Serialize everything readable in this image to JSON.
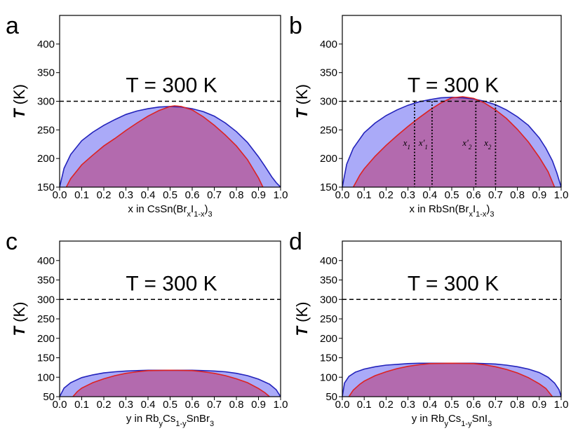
{
  "chart_data": [
    {
      "panel": "a",
      "type": "area",
      "xlim": [
        0.0,
        1.0
      ],
      "ylim": [
        150,
        450
      ],
      "xticks": [
        "0.0",
        "0.1",
        "0.2",
        "0.3",
        "0.4",
        "0.5",
        "0.6",
        "0.7",
        "0.8",
        "0.9",
        "1.0"
      ],
      "yticks": [
        "150",
        "200",
        "250",
        "300",
        "350",
        "400"
      ],
      "ylabel_italic": "T",
      "ylabel_unit": "(K)",
      "xlabel": "x in CsSn(Br<sub>x</sub>I<sub>1-x</sub>)<sub>3</sub>",
      "annotation": "T = 300 K",
      "reference_line": 300,
      "grid": false,
      "series": [
        {
          "role": "binodal",
          "color": "#2222bb",
          "fill": "#aaaaf8",
          "x": [
            0.0,
            0.02,
            0.05,
            0.1,
            0.15,
            0.2,
            0.25,
            0.3,
            0.35,
            0.4,
            0.45,
            0.5,
            0.55,
            0.6,
            0.65,
            0.7,
            0.75,
            0.8,
            0.85,
            0.9,
            0.93,
            0.96,
            0.98,
            1.0
          ],
          "y": [
            150,
            183,
            207,
            231,
            246,
            258,
            268,
            277,
            283,
            287,
            290,
            291,
            290,
            287,
            282,
            274,
            262,
            247,
            228,
            203,
            186,
            168,
            158,
            150
          ]
        },
        {
          "role": "spinodal",
          "color": "#dd2222",
          "fill": "#b36aae",
          "x": [
            0.03,
            0.05,
            0.1,
            0.15,
            0.2,
            0.25,
            0.3,
            0.35,
            0.4,
            0.45,
            0.5,
            0.52,
            0.55,
            0.6,
            0.65,
            0.7,
            0.75,
            0.8,
            0.85,
            0.9,
            0.92
          ],
          "y": [
            150,
            165,
            189,
            206,
            222,
            235,
            249,
            262,
            274,
            284,
            291,
            292,
            291,
            285,
            273,
            258,
            241,
            222,
            198,
            166,
            150
          ]
        }
      ]
    },
    {
      "panel": "b",
      "type": "area",
      "xlim": [
        0.0,
        1.0
      ],
      "ylim": [
        150,
        450
      ],
      "xticks": [
        "0.0",
        "0.1",
        "0.2",
        "0.3",
        "0.4",
        "0.5",
        "0.6",
        "0.7",
        "0.8",
        "0.9",
        "1.0"
      ],
      "yticks": [
        "150",
        "200",
        "250",
        "300",
        "350",
        "400"
      ],
      "ylabel_italic": "T",
      "ylabel_unit": "(K)",
      "xlabel": "x in RbSn(Br<sub>x</sub>I<sub>1-x</sub>)<sub>3</sub>",
      "annotation": "T = 300 K",
      "reference_line": 300,
      "grid": false,
      "vertical_markers": [
        {
          "x": 0.33,
          "label": "x<tspan baseline-shift='sub' font-size='9'>1</tspan>"
        },
        {
          "x": 0.41,
          "label": "x'<tspan baseline-shift='sub' font-size='9'>1</tspan>"
        },
        {
          "x": 0.61,
          "label": "x'<tspan baseline-shift='sub' font-size='9'>2</tspan>"
        },
        {
          "x": 0.7,
          "label": "x<tspan baseline-shift='sub' font-size='9'>2</tspan>"
        }
      ],
      "series": [
        {
          "role": "binodal",
          "color": "#2222bb",
          "fill": "#aaaaf8",
          "x": [
            0.0,
            0.02,
            0.05,
            0.1,
            0.15,
            0.2,
            0.25,
            0.3,
            0.35,
            0.4,
            0.45,
            0.5,
            0.55,
            0.6,
            0.65,
            0.7,
            0.75,
            0.8,
            0.85,
            0.9,
            0.93,
            0.96,
            0.98,
            1.0
          ],
          "y": [
            150,
            190,
            218,
            245,
            262,
            275,
            285,
            293,
            299,
            303,
            306,
            307,
            306,
            304,
            300,
            294,
            285,
            273,
            258,
            236,
            218,
            196,
            175,
            150
          ]
        },
        {
          "role": "spinodal",
          "color": "#dd2222",
          "fill": "#b36aae",
          "x": [
            0.05,
            0.08,
            0.1,
            0.15,
            0.2,
            0.25,
            0.3,
            0.35,
            0.4,
            0.45,
            0.5,
            0.55,
            0.6,
            0.65,
            0.7,
            0.75,
            0.8,
            0.85,
            0.9,
            0.94,
            0.97
          ],
          "y": [
            150,
            171,
            182,
            204,
            223,
            240,
            256,
            271,
            285,
            297,
            306,
            308,
            305,
            297,
            285,
            270,
            251,
            229,
            202,
            177,
            150
          ]
        }
      ]
    },
    {
      "panel": "c",
      "type": "area",
      "xlim": [
        0.0,
        1.0
      ],
      "ylim": [
        50,
        450
      ],
      "xticks": [
        "0.0",
        "0.1",
        "0.2",
        "0.3",
        "0.4",
        "0.5",
        "0.6",
        "0.7",
        "0.8",
        "0.9",
        "1.0"
      ],
      "yticks": [
        "50",
        "100",
        "150",
        "200",
        "250",
        "300",
        "350",
        "400"
      ],
      "ylabel_italic": "T",
      "ylabel_unit": "(K)",
      "xlabel": "y in Rb<sub>y</sub>Cs<sub>1-y</sub>SnBr<sub>3</sub>",
      "annotation": "T = 300 K",
      "reference_line": 300,
      "grid": false,
      "series": [
        {
          "role": "binodal",
          "color": "#2222bb",
          "fill": "#aaaaf8",
          "x": [
            0.0,
            0.02,
            0.05,
            0.1,
            0.15,
            0.2,
            0.25,
            0.3,
            0.35,
            0.4,
            0.5,
            0.6,
            0.65,
            0.7,
            0.75,
            0.8,
            0.85,
            0.9,
            0.95,
            0.98,
            1.0
          ],
          "y": [
            50,
            72,
            86,
            99,
            106,
            111,
            114,
            116,
            117,
            118,
            118,
            118,
            117,
            116,
            114,
            110,
            104,
            95,
            82,
            68,
            50
          ]
        },
        {
          "role": "spinodal",
          "color": "#dd2222",
          "fill": "#b36aae",
          "x": [
            0.06,
            0.08,
            0.1,
            0.15,
            0.2,
            0.25,
            0.3,
            0.35,
            0.4,
            0.5,
            0.6,
            0.65,
            0.7,
            0.75,
            0.8,
            0.85,
            0.9,
            0.93,
            0.95
          ],
          "y": [
            50,
            63,
            72,
            86,
            96,
            104,
            110,
            114,
            117,
            118,
            117,
            114,
            110,
            104,
            96,
            86,
            71,
            60,
            50
          ]
        }
      ]
    },
    {
      "panel": "d",
      "type": "area",
      "xlim": [
        0.0,
        1.0
      ],
      "ylim": [
        50,
        450
      ],
      "xticks": [
        "0.0",
        "0.1",
        "0.2",
        "0.3",
        "0.4",
        "0.5",
        "0.6",
        "0.7",
        "0.8",
        "0.9",
        "1.0"
      ],
      "yticks": [
        "50",
        "100",
        "150",
        "200",
        "250",
        "300",
        "350",
        "400"
      ],
      "ylabel_italic": "T",
      "ylabel_unit": "(K)",
      "xlabel": "y in Rb<sub>y</sub>Cs<sub>1-y</sub>SnI<sub>3</sub>",
      "annotation": "T = 300 K",
      "reference_line": 300,
      "grid": false,
      "series": [
        {
          "role": "binodal",
          "color": "#2222bb",
          "fill": "#aaaaf8",
          "x": [
            0.0,
            0.01,
            0.03,
            0.06,
            0.1,
            0.15,
            0.2,
            0.25,
            0.3,
            0.35,
            0.4,
            0.5,
            0.6,
            0.65,
            0.7,
            0.75,
            0.8,
            0.85,
            0.9,
            0.94,
            0.97,
            0.99,
            1.0
          ],
          "y": [
            50,
            85,
            102,
            113,
            121,
            127,
            131,
            133,
            135,
            136,
            136,
            136,
            136,
            135,
            134,
            131,
            127,
            121,
            112,
            100,
            85,
            68,
            50
          ]
        },
        {
          "role": "spinodal",
          "color": "#dd2222",
          "fill": "#b36aae",
          "x": [
            0.03,
            0.05,
            0.08,
            0.1,
            0.15,
            0.2,
            0.25,
            0.3,
            0.35,
            0.4,
            0.5,
            0.6,
            0.65,
            0.7,
            0.75,
            0.8,
            0.85,
            0.9,
            0.93,
            0.96
          ],
          "y": [
            50,
            67,
            82,
            90,
            104,
            114,
            122,
            128,
            132,
            135,
            136,
            135,
            132,
            127,
            120,
            111,
            99,
            83,
            71,
            50
          ]
        }
      ]
    }
  ]
}
